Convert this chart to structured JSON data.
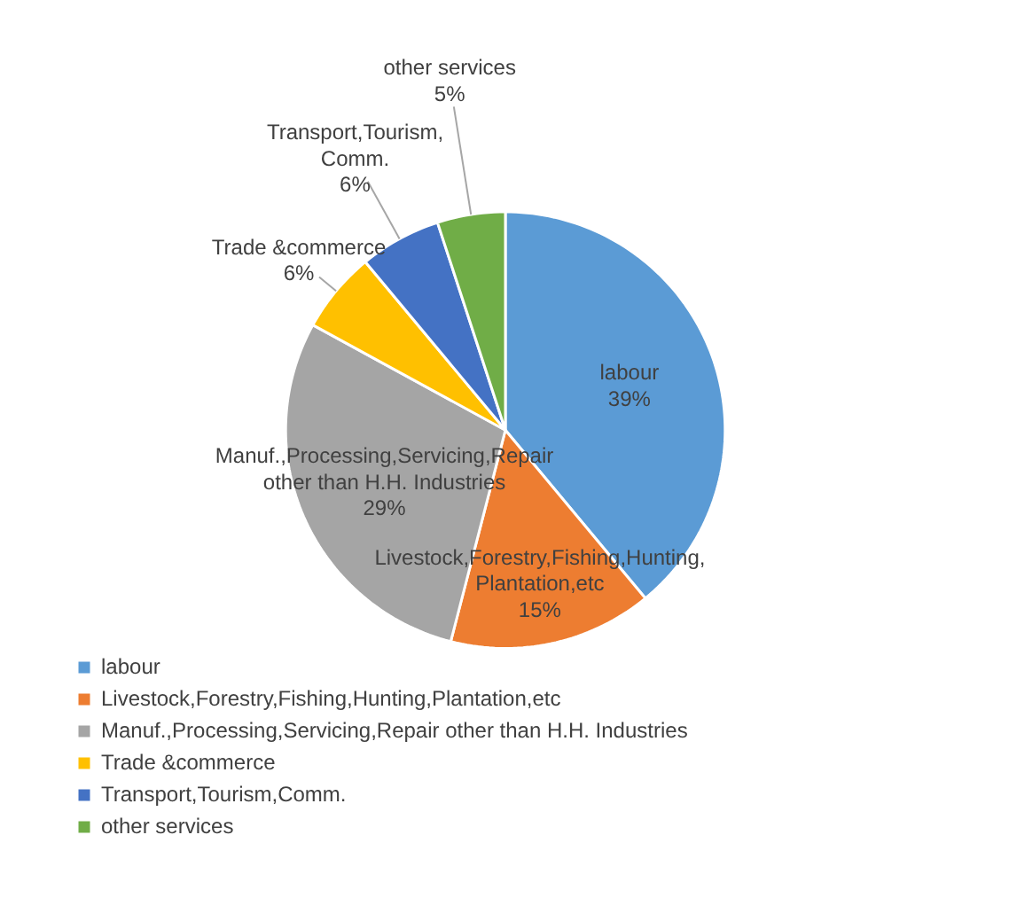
{
  "chart_data": {
    "type": "pie",
    "categories": [
      "labour",
      "Livestock,Forestry,Fishing,Hunting,Plantation,etc",
      "Manuf.,Processing,Servicing,Repair other than H.H. Industries",
      "Trade &commerce",
      "Transport,Tourism,Comm.",
      "other services"
    ],
    "values": [
      39,
      15,
      29,
      6,
      6,
      5
    ],
    "value_labels": [
      "39%",
      "15%",
      "29%",
      "6%",
      "6%",
      "5%"
    ],
    "colors": [
      "#5b9bd5",
      "#ed7d31",
      "#a5a5a5",
      "#ffc000",
      "#4472c4",
      "#70ad47"
    ],
    "data_labels": true,
    "legend": "bottom"
  }
}
